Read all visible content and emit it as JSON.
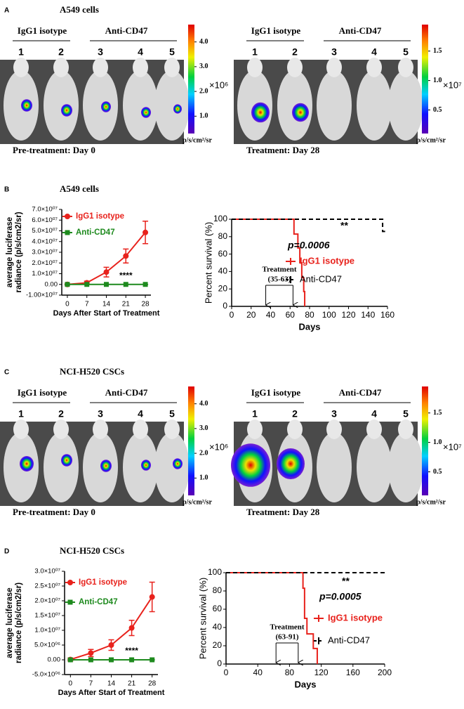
{
  "figure": {
    "panels": [
      {
        "label": "A",
        "title": "A549 cells",
        "images": [
          {
            "groups": [
              "IgG1 isotype",
              "Anti-CD47"
            ],
            "mice": [
              "1",
              "2",
              "3",
              "4",
              "5"
            ],
            "caption": "Pre-treatment: Day 0",
            "colorbar": {
              "lim": [
                0.3,
                4.7
              ],
              "ticks": [
                {
                  "value": 1,
                  "label": "1.0"
                },
                {
                  "value": 2,
                  "label": "2.0"
                },
                {
                  "value": 3,
                  "label": "3.0"
                },
                {
                  "value": 4,
                  "label": "4.0"
                }
              ],
              "multiplier": "×10⁶",
              "unit": "p/s/cm²/sr"
            }
          },
          {
            "groups": [
              "IgG1 isotype",
              "Anti-CD47"
            ],
            "mice": [
              "1",
              "2",
              "3",
              "4",
              "5"
            ],
            "caption": "Treatment: Day 28",
            "colorbar": {
              "lim": [
                0.1,
                1.95
              ],
              "ticks": [
                0.5,
                {
                  "value": 1,
                  "label": "1.0"
                },
                1.5
              ],
              "multiplier": "×10⁷",
              "unit": "p/s/cm²/sr"
            }
          }
        ]
      },
      {
        "label": "B",
        "title": "A549 cells"
      },
      {
        "label": "C",
        "title": "NCI-H520 CSCs",
        "images": [
          {
            "groups": [
              "IgG1 isotype",
              "Anti-CD47"
            ],
            "mice": [
              "1",
              "2",
              "3",
              "4",
              "5"
            ],
            "caption": "Pre-treatment: Day 0",
            "colorbar": {
              "lim": [
                0.3,
                4.7
              ],
              "ticks": [
                {
                  "value": 1,
                  "label": "1.0"
                },
                {
                  "value": 2,
                  "label": "2.0"
                },
                {
                  "value": 3,
                  "label": "3.0"
                },
                {
                  "value": 4,
                  "label": "4.0"
                }
              ],
              "multiplier": "×10⁶",
              "unit": "p/s/cm²/sr"
            }
          },
          {
            "groups": [
              "IgG1 isotype",
              "Anti-CD47"
            ],
            "mice": [
              "1",
              "2",
              "3",
              "4",
              "5"
            ],
            "caption": "Treatment: Day 28",
            "colorbar": {
              "lim": [
                0.1,
                1.95
              ],
              "ticks": [
                0.5,
                {
                  "value": 1,
                  "label": "1.0"
                },
                1.5
              ],
              "multiplier": "×10⁷",
              "unit": "p/s/cm²/sr"
            }
          }
        ]
      },
      {
        "label": "D",
        "title": "NCI-H520 CSCs"
      }
    ]
  },
  "chart_data": [
    {
      "type": "line",
      "ylabel": [
        "average luciferase",
        "radiance (p/s/cm2/sr)"
      ],
      "xlabel": "Days After Start of Treatment",
      "xlim": [
        -2,
        30
      ],
      "xticks": [
        0,
        7,
        14,
        21,
        28
      ],
      "ylim": [
        -10000000,
        70000000
      ],
      "yticks": [
        {
          "value": -10000000,
          "label": "-1.00×10⁰⁷"
        },
        {
          "value": 0,
          "label": "0.00"
        },
        {
          "value": 10000000,
          "label": "1.0×10⁰⁷"
        },
        {
          "value": 20000000,
          "label": "2.0×10⁰⁷"
        },
        {
          "value": 30000000,
          "label": "3.0×10⁰⁷"
        },
        {
          "value": 40000000,
          "label": "4.0×10⁰⁷"
        },
        {
          "value": 50000000,
          "label": "5.0×10⁰⁷"
        },
        {
          "value": 60000000,
          "label": "6.0×10⁰⁷"
        },
        {
          "value": 70000000,
          "label": "7.0×10⁰⁷"
        }
      ],
      "series": [
        {
          "name": "IgG1 isotype",
          "color": "#e8221c",
          "marker": "circle",
          "x": [
            0,
            7,
            14,
            21,
            28
          ],
          "values": [
            0,
            1500000,
            11500000,
            26500000,
            48500000
          ],
          "errors": [
            500000,
            1500000,
            4500000,
            6500000,
            10500000
          ]
        },
        {
          "name": "Anti-CD47",
          "color": "#1e8a1e",
          "marker": "square",
          "x": [
            0,
            7,
            14,
            21,
            28
          ],
          "values": [
            0,
            0,
            0,
            0,
            0
          ],
          "errors": [
            0,
            0,
            0,
            0,
            0
          ]
        }
      ],
      "annotations": [
        "****"
      ]
    },
    {
      "type": "step",
      "ylabel": "Percent survival (%)",
      "xlabel": "Days",
      "xlim": [
        0,
        160
      ],
      "xticks": [
        0,
        20,
        40,
        60,
        80,
        100,
        120,
        140,
        160
      ],
      "ylim": [
        0,
        100
      ],
      "yticks": [
        0,
        20,
        40,
        60,
        80,
        100
      ],
      "series": [
        {
          "name": "IgG1 isotype",
          "color": "#e8221c",
          "line_style": "solid",
          "x": [
            0,
            64,
            64,
            68,
            68,
            70,
            70,
            72,
            72,
            74,
            74,
            75,
            75
          ],
          "values": [
            100,
            100,
            83,
            83,
            67,
            67,
            50,
            50,
            33,
            33,
            17,
            17,
            0
          ]
        },
        {
          "name": "Anti-CD47",
          "color": "#000000",
          "line_style": "dashed",
          "x": [
            0,
            155,
            155,
            158
          ],
          "values": [
            100,
            100,
            86,
            86
          ]
        }
      ],
      "annotations": [
        "**",
        "p=0.0006"
      ],
      "treatment": {
        "label": "Treatment",
        "range_label": "(35-63)",
        "window": [
          35,
          63
        ]
      }
    },
    {
      "type": "line",
      "ylabel": [
        "average luciferase",
        "radiance (p/s/cm2/sr)"
      ],
      "xlabel": "Days After Start of Treatment",
      "xlim": [
        -2,
        30
      ],
      "xticks": [
        0,
        7,
        14,
        21,
        28
      ],
      "ylim": [
        -5000000,
        30000000
      ],
      "yticks": [
        {
          "value": -5000000,
          "label": "-5.0×10⁰⁶"
        },
        {
          "value": 0,
          "label": "0.00"
        },
        {
          "value": 5000000,
          "label": "5.0×10⁰⁶"
        },
        {
          "value": 10000000,
          "label": "1.0×10⁰⁷"
        },
        {
          "value": 15000000,
          "label": "1.5×10⁰⁷"
        },
        {
          "value": 20000000,
          "label": "2.0×10⁰⁷"
        },
        {
          "value": 25000000,
          "label": "2.5×10⁰⁷"
        },
        {
          "value": 30000000,
          "label": "3.0×10⁰⁷"
        }
      ],
      "series": [
        {
          "name": "IgG1 isotype",
          "color": "#e8221c",
          "marker": "circle",
          "x": [
            0,
            7,
            14,
            21,
            28
          ],
          "values": [
            100000,
            2300000,
            5000000,
            10800000,
            21300000
          ],
          "errors": [
            500000,
            1200000,
            1800000,
            2600000,
            5000000
          ]
        },
        {
          "name": "Anti-CD47",
          "color": "#1e8a1e",
          "marker": "square",
          "x": [
            0,
            7,
            14,
            21,
            28
          ],
          "values": [
            0,
            0,
            0,
            0,
            0
          ],
          "errors": [
            0,
            0,
            0,
            0,
            0
          ]
        }
      ],
      "annotations": [
        "****"
      ]
    },
    {
      "type": "step",
      "ylabel": "Percent survival (%)",
      "xlabel": "Days",
      "xlim": [
        0,
        200
      ],
      "xticks": [
        0,
        40,
        80,
        120,
        160,
        200
      ],
      "ylim": [
        0,
        100
      ],
      "yticks": [
        0,
        20,
        40,
        60,
        80,
        100
      ],
      "series": [
        {
          "name": "IgG1 isotype",
          "color": "#e8221c",
          "line_style": "solid",
          "x": [
            0,
            97,
            97,
            99,
            99,
            102,
            102,
            110,
            110,
            115,
            115
          ],
          "values": [
            100,
            100,
            83,
            83,
            50,
            50,
            33,
            33,
            17,
            17,
            0
          ]
        },
        {
          "name": "Anti-CD47",
          "color": "#000000",
          "line_style": "dashed",
          "x": [
            0,
            200
          ],
          "values": [
            100,
            100
          ]
        }
      ],
      "annotations": [
        "**",
        "p=0.0005"
      ],
      "treatment": {
        "label": "Treatment",
        "range_label": "(63-91)",
        "window": [
          63,
          91
        ]
      }
    }
  ]
}
